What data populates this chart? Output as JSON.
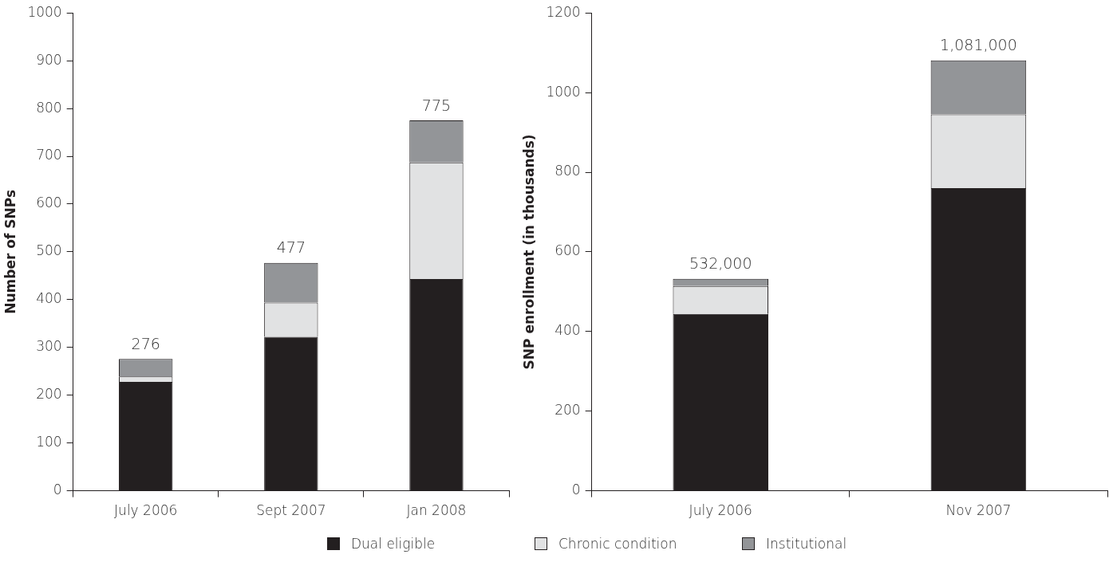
{
  "chart_data": [
    {
      "type": "bar",
      "stacked": true,
      "categories": [
        "July 2006",
        "Sept 2007",
        "Jan 2008"
      ],
      "ylabel": "Number of SNPs",
      "ylim": [
        0,
        1000
      ],
      "yticks": [
        0,
        100,
        200,
        300,
        400,
        500,
        600,
        700,
        800,
        900,
        1000
      ],
      "grid": false,
      "legend": "bottom",
      "series": [
        {
          "name": "Dual eligible",
          "color": "#231f20",
          "values": [
            228,
            322,
            443
          ]
        },
        {
          "name": "Chronic condition",
          "color": "#e1e2e3",
          "values": [
            11,
            72,
            244
          ]
        },
        {
          "name": "Institutional",
          "color": "#939598",
          "values": [
            37,
            83,
            88
          ]
        }
      ],
      "totals": [
        "276",
        "477",
        "775"
      ]
    },
    {
      "type": "bar",
      "stacked": true,
      "categories": [
        "July 2006",
        "Nov 2007"
      ],
      "ylabel": "SNP enrollment (in thousands)",
      "ylim": [
        0,
        1200
      ],
      "yticks": [
        0,
        200,
        400,
        600,
        800,
        1000,
        1200
      ],
      "grid": false,
      "series": [
        {
          "color": "#231f20",
          "values": [
            444,
            760
          ]
        },
        {
          "color": "#e1e2e3",
          "values": [
            70,
            185
          ]
        },
        {
          "color": "#939598",
          "values": [
            18,
            136
          ]
        }
      ],
      "totals": [
        "532,000",
        "1,081,000"
      ]
    }
  ]
}
